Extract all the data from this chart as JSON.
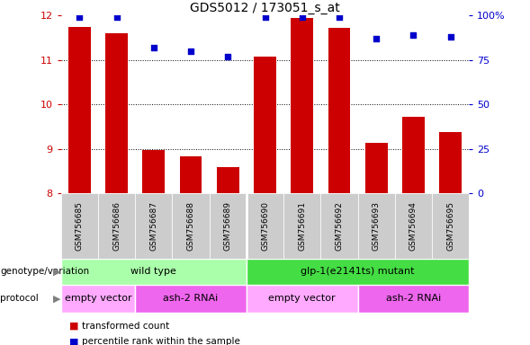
{
  "title": "GDS5012 / 173051_s_at",
  "samples": [
    "GSM756685",
    "GSM756686",
    "GSM756687",
    "GSM756688",
    "GSM756689",
    "GSM756690",
    "GSM756691",
    "GSM756692",
    "GSM756693",
    "GSM756694",
    "GSM756695"
  ],
  "transformed_counts": [
    11.75,
    11.6,
    8.97,
    8.82,
    8.58,
    11.08,
    11.95,
    11.72,
    9.13,
    9.72,
    9.38
  ],
  "percentile_ranks": [
    99,
    99,
    82,
    80,
    77,
    99,
    99,
    99,
    87,
    89,
    88
  ],
  "ylim_left": [
    8,
    12
  ],
  "ylim_right": [
    0,
    100
  ],
  "yticks_left": [
    8,
    9,
    10,
    11,
    12
  ],
  "yticks_right": [
    0,
    25,
    50,
    75,
    100
  ],
  "yticklabels_right": [
    "0",
    "25",
    "50",
    "75",
    "100%"
  ],
  "bar_color": "#cc0000",
  "dot_color": "#0000cc",
  "ylabel_left_color": "#cc0000",
  "ylabel_right_color": "#0000cc",
  "genotype_groups": [
    {
      "label": "wild type",
      "start": 0,
      "end": 4,
      "color": "#aaffaa"
    },
    {
      "label": "glp-1(e2141ts) mutant",
      "start": 5,
      "end": 10,
      "color": "#44dd44"
    }
  ],
  "protocol_groups": [
    {
      "label": "empty vector",
      "start": 0,
      "end": 1,
      "color": "#ffaaff"
    },
    {
      "label": "ash-2 RNAi",
      "start": 2,
      "end": 4,
      "color": "#ee66ee"
    },
    {
      "label": "empty vector",
      "start": 5,
      "end": 7,
      "color": "#ffaaff"
    },
    {
      "label": "ash-2 RNAi",
      "start": 8,
      "end": 10,
      "color": "#ee66ee"
    }
  ],
  "legend_items": [
    {
      "color": "#cc0000",
      "label": "transformed count"
    },
    {
      "color": "#0000cc",
      "label": "percentile rank within the sample"
    }
  ],
  "genotype_label": "genotype/variation",
  "protocol_label": "protocol",
  "bar_width": 0.6,
  "sample_box_color": "#cccccc",
  "n_samples": 11
}
